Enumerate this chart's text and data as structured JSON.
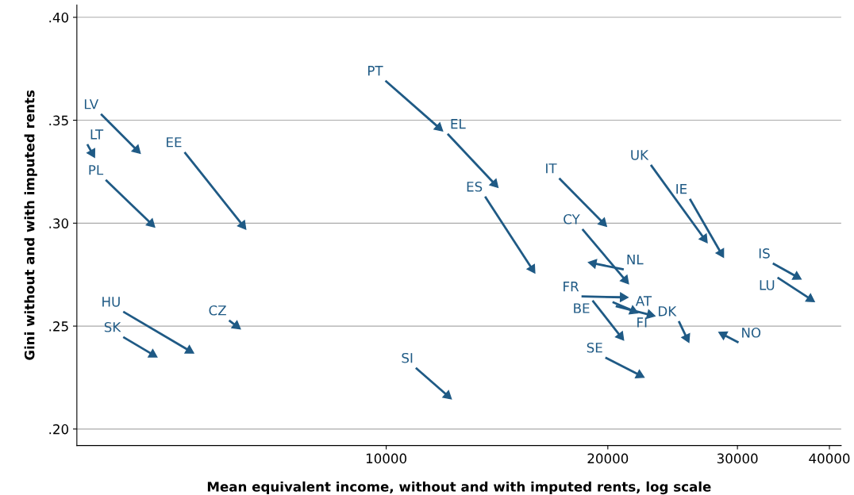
{
  "chart_data": {
    "type": "line",
    "xlabel": "Mean equivalent income, without and with imputed rents, log scale",
    "ylabel": "Gini without and with imputed rents",
    "log": "x",
    "xlim": [
      3800,
      41500
    ],
    "xticks": [
      10000,
      20000,
      30000,
      40000
    ],
    "ylim": [
      0.192,
      0.406
    ],
    "yticks": [
      {
        "value": 0.2,
        "label": ".20"
      },
      {
        "value": 0.25,
        "label": ".25"
      },
      {
        "value": 0.3,
        "label": ".30"
      },
      {
        "value": 0.35,
        "label": ".35"
      },
      {
        "value": 0.4,
        "label": ".40"
      }
    ],
    "grid": "y",
    "marker": "triangle",
    "line_style": "solid",
    "series": [
      {
        "name": "LV",
        "color": "#1f5a85",
        "x": [
          4097,
          4583
        ],
        "values": [
          0.353,
          0.3356
        ]
      },
      {
        "name": "LT",
        "color": "#1f5a85",
        "x": [
          3926,
          3986
        ],
        "values": [
          0.3383,
          0.3341
        ]
      },
      {
        "name": "PL",
        "color": "#1f5a85",
        "x": [
          4159,
          4793
        ],
        "values": [
          0.321,
          0.2998
        ]
      },
      {
        "name": "EE",
        "color": "#1f5a85",
        "x": [
          5322,
          6383
        ],
        "values": [
          0.3345,
          0.299
        ]
      },
      {
        "name": "HU",
        "color": "#1f5a85",
        "x": [
          4393,
          5402
        ],
        "values": [
          0.257,
          0.2381
        ]
      },
      {
        "name": "SK",
        "color": "#1f5a85",
        "x": [
          4393,
          4817
        ],
        "values": [
          0.2447,
          0.2362
        ]
      },
      {
        "name": "CZ",
        "color": "#1f5a85",
        "x": [
          6117,
          6258
        ],
        "values": [
          0.2528,
          0.2501
        ]
      },
      {
        "name": "PT",
        "color": "#1f5a85",
        "x": [
          9975,
          11790
        ],
        "values": [
          0.3692,
          0.3464
        ]
      },
      {
        "name": "EL",
        "color": "#1f5a85",
        "x": [
          12117,
          14036
        ],
        "values": [
          0.3434,
          0.3191
        ]
      },
      {
        "name": "ES",
        "color": "#1f5a85",
        "x": [
          13625,
          15784
        ],
        "values": [
          0.3129,
          0.2778
        ]
      },
      {
        "name": "IT",
        "color": "#1f5a85",
        "x": [
          17179,
          19703
        ],
        "values": [
          0.3218,
          0.3002
        ]
      },
      {
        "name": "CY",
        "color": "#1f5a85",
        "x": [
          18470,
          21124
        ],
        "values": [
          0.2971,
          0.2724
        ]
      },
      {
        "name": "NL",
        "color": "#1f5a85",
        "x": [
          21022,
          19115
        ],
        "values": [
          0.2775,
          0.2805
        ]
      },
      {
        "name": "FR",
        "color": "#1f5a85",
        "x": [
          18421,
          20968
        ],
        "values": [
          0.2644,
          0.264
        ]
      },
      {
        "name": "BE",
        "color": "#1f5a85",
        "x": [
          19067,
          20812
        ],
        "values": [
          0.2624,
          0.2451
        ]
      },
      {
        "name": "AT",
        "color": "#1f5a85",
        "x": [
          20298,
          21652
        ],
        "values": [
          0.2617,
          0.2574
        ]
      },
      {
        "name": "FI",
        "color": "#1f5a85",
        "x": [
          20500,
          22823
        ],
        "values": [
          0.2597,
          0.2555
        ]
      },
      {
        "name": "SE",
        "color": "#1f5a85",
        "x": [
          19850,
          22090
        ],
        "values": [
          0.2347,
          0.2262
        ]
      },
      {
        "name": "UK",
        "color": "#1f5a85",
        "x": [
          22880,
          27040
        ],
        "values": [
          0.3283,
          0.2925
        ]
      },
      {
        "name": "IE",
        "color": "#1f5a85",
        "x": [
          25850,
          28500
        ],
        "values": [
          0.3118,
          0.2855
        ]
      },
      {
        "name": "DK",
        "color": "#1f5a85",
        "x": [
          24970,
          25600
        ],
        "values": [
          0.2524,
          0.2443
        ]
      },
      {
        "name": "NO",
        "color": "#1f5a85",
        "x": [
          30100,
          28700
        ],
        "values": [
          0.242,
          0.2459
        ]
      },
      {
        "name": "IS",
        "color": "#1f5a85",
        "x": [
          33510,
          36110
        ],
        "values": [
          0.2805,
          0.274
        ]
      },
      {
        "name": "LU",
        "color": "#1f5a85",
        "x": [
          34010,
          37670
        ],
        "values": [
          0.2736,
          0.2632
        ]
      },
      {
        "name": "SI",
        "color": "#1f5a85",
        "x": [
          10970,
          12117
        ],
        "values": [
          0.2297,
          0.2162
        ]
      }
    ]
  }
}
